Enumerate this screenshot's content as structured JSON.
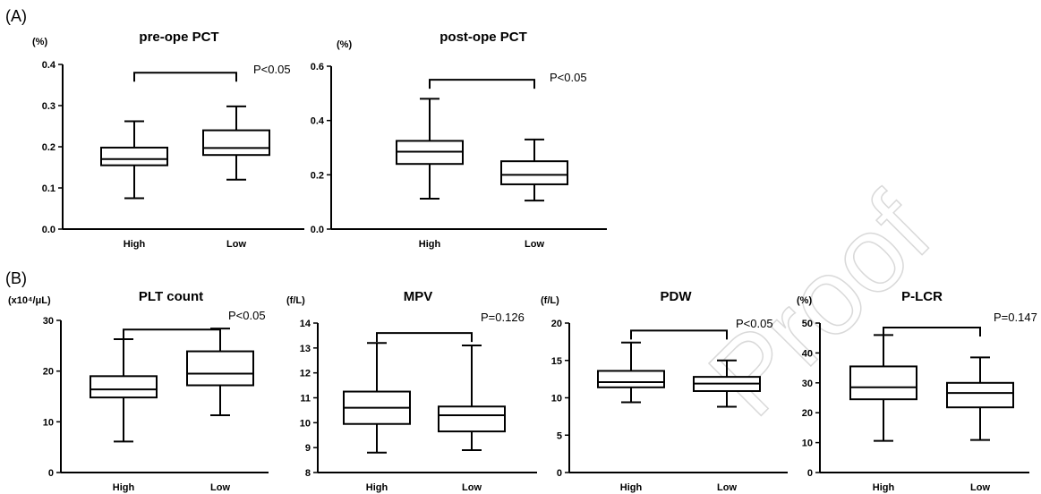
{
  "panel_labels": [
    "(A)",
    "(B)"
  ],
  "watermark": "Journal Pre-proof",
  "chart_data": [
    {
      "type": "box",
      "panel": "A",
      "title": "pre-ope PCT",
      "unit": "(%)",
      "categories": [
        "High",
        "Low"
      ],
      "ylim": [
        0,
        0.4
      ],
      "yticks": [
        "0.0",
        "0.1",
        "0.2",
        "0.3",
        "0.4"
      ],
      "boxes": [
        {
          "min": 0.075,
          "q1": 0.155,
          "median": 0.17,
          "q3": 0.198,
          "max": 0.262
        },
        {
          "min": 0.12,
          "q1": 0.18,
          "median": 0.197,
          "q3": 0.24,
          "max": 0.298
        }
      ],
      "annotation": "P<0.05",
      "bracket_y": 0.38
    },
    {
      "type": "box",
      "panel": "A",
      "title": "post-ope PCT",
      "unit": "(%)",
      "categories": [
        "High",
        "Low"
      ],
      "ylim": [
        0,
        0.6
      ],
      "yticks": [
        "0.0",
        "0.2",
        "0.4",
        "0.6"
      ],
      "boxes": [
        {
          "min": 0.112,
          "q1": 0.24,
          "median": 0.285,
          "q3": 0.325,
          "max": 0.48
        },
        {
          "min": 0.105,
          "q1": 0.165,
          "median": 0.2,
          "q3": 0.25,
          "max": 0.33
        }
      ],
      "annotation": "P<0.05",
      "bracket_y": 0.55
    },
    {
      "type": "box",
      "panel": "B",
      "title": "PLT count",
      "unit": "(x10⁴/μL)",
      "categories": [
        "High",
        "Low"
      ],
      "ylim": [
        0,
        30
      ],
      "yticks": [
        "0",
        "10",
        "20",
        "30"
      ],
      "boxes": [
        {
          "min": 6.1,
          "q1": 14.8,
          "median": 16.4,
          "q3": 19,
          "max": 26.3
        },
        {
          "min": 11.3,
          "q1": 17.2,
          "median": 19.5,
          "q3": 23.9,
          "max": 28.4
        }
      ],
      "annotation": "P<0.05",
      "bracket_y": 28.2
    },
    {
      "type": "box",
      "panel": "B",
      "title": "MPV",
      "unit": "(f/L)",
      "categories": [
        "High",
        "Low"
      ],
      "ylim": [
        8,
        14
      ],
      "yticks": [
        "8",
        "9",
        "10",
        "11",
        "12",
        "13",
        "14"
      ],
      "boxes": [
        {
          "min": 8.8,
          "q1": 9.95,
          "median": 10.6,
          "q3": 11.25,
          "max": 13.2
        },
        {
          "min": 8.9,
          "q1": 9.65,
          "median": 10.3,
          "q3": 10.65,
          "max": 13.1
        }
      ],
      "annotation": "P=0.126",
      "bracket_y": 13.6
    },
    {
      "type": "box",
      "panel": "B",
      "title": "PDW",
      "unit": "(f/L)",
      "categories": [
        "High",
        "Low"
      ],
      "ylim": [
        0,
        20
      ],
      "yticks": [
        "0",
        "5",
        "10",
        "15",
        "20"
      ],
      "boxes": [
        {
          "min": 9.4,
          "q1": 11.4,
          "median": 12.1,
          "q3": 13.6,
          "max": 17.4
        },
        {
          "min": 8.8,
          "q1": 10.9,
          "median": 11.9,
          "q3": 12.8,
          "max": 15
        }
      ],
      "annotation": "P<0.05",
      "bracket_y": 19
    },
    {
      "type": "box",
      "panel": "B",
      "title": "P-LCR",
      "unit": "(%)",
      "categories": [
        "High",
        "Low"
      ],
      "ylim": [
        0,
        50
      ],
      "yticks": [
        "0",
        "10",
        "20",
        "30",
        "40",
        "50"
      ],
      "boxes": [
        {
          "min": 10.6,
          "q1": 24.5,
          "median": 28.5,
          "q3": 35.5,
          "max": 46
        },
        {
          "min": 10.9,
          "q1": 21.8,
          "median": 26.6,
          "q3": 30,
          "max": 38.5
        }
      ],
      "annotation": "P=0.147",
      "bracket_y": 48.5
    }
  ]
}
